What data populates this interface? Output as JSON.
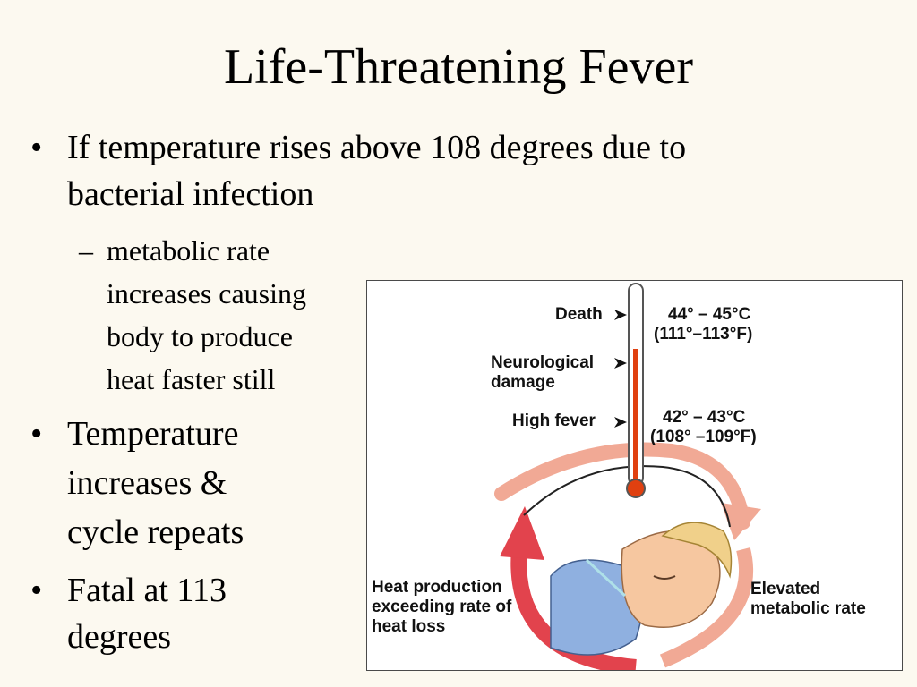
{
  "slide": {
    "title": "Life-Threatening Fever",
    "bullet1_line1": "If temperature rises above 108 degrees due to",
    "bullet1_line2": "bacterial infection",
    "sub_line1": "metabolic rate",
    "sub_line2": "increases causing",
    "sub_line3": "body to produce",
    "sub_line4": "heat faster still",
    "bullet2_line1": "Temperature",
    "bullet2_line2": "increases &",
    "bullet2_line3": "cycle repeats",
    "bullet3_line1": "Fatal at 113",
    "bullet3_line2": "degrees",
    "bullet_symbol": "•",
    "dash_symbol": "–"
  },
  "figure": {
    "death_label": "Death",
    "neuro_label_line1": "Neurological",
    "neuro_label_line2": "damage",
    "highfever_label": "High fever",
    "death_temp_c": "44° – 45°C",
    "death_temp_f": "(111°–113°F)",
    "fever_temp_c": "42° – 43°C",
    "fever_temp_f": "(108° –109°F)",
    "heat_line1": "Heat production",
    "heat_line2": "exceeding rate of",
    "heat_line3": "heat loss",
    "elevated_line1": "Elevated",
    "elevated_line2": "metabolic rate"
  },
  "colors": {
    "background": "#fcf9f0",
    "arrow_red": "#e0404a",
    "arrow_pink": "#f0a090",
    "mercury": "#e04010",
    "pillow_blue": "#8fb0e0",
    "skin": "#f6c7a0",
    "hair": "#f0d08a"
  }
}
